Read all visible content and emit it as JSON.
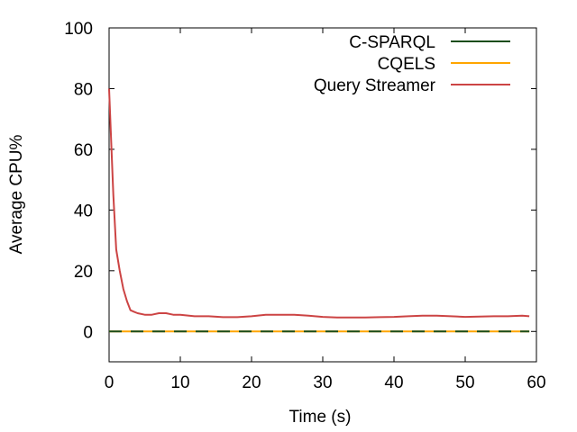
{
  "chart_data": {
    "type": "line",
    "title": "",
    "xlabel": "Time (s)",
    "ylabel": "Average CPU%",
    "xlim": [
      0,
      60
    ],
    "ylim": [
      -10,
      100
    ],
    "xticks": [
      0,
      10,
      20,
      30,
      40,
      50,
      60
    ],
    "yticks": [
      0,
      20,
      40,
      60,
      80,
      100
    ],
    "grid": false,
    "legend_position": "top-right",
    "series": [
      {
        "name": "C-SPARQL",
        "color": "#1a4d1a",
        "x": [
          0,
          3,
          4,
          59
        ],
        "y": [
          0,
          0,
          0,
          0
        ]
      },
      {
        "name": "CQELS",
        "color": "#ffa500",
        "x": [
          0,
          59
        ],
        "y": [
          0,
          0
        ]
      },
      {
        "name": "Query Streamer",
        "color": "#cc4444",
        "x": [
          0,
          0.3,
          0.6,
          1,
          1.5,
          2,
          2.5,
          3,
          3.5,
          4,
          5,
          6,
          7,
          8,
          9,
          10,
          12,
          14,
          16,
          18,
          20,
          22,
          24,
          26,
          28,
          30,
          32,
          34,
          36,
          38,
          40,
          42,
          44,
          46,
          48,
          50,
          52,
          54,
          56,
          58,
          59
        ],
        "y": [
          80,
          62,
          45,
          27,
          20,
          14,
          10,
          7,
          6.5,
          6,
          5.5,
          5.5,
          6,
          6,
          5.5,
          5.5,
          5,
          5,
          4.7,
          4.7,
          5,
          5.5,
          5.5,
          5.5,
          5.2,
          4.8,
          4.6,
          4.6,
          4.6,
          4.7,
          4.8,
          5,
          5.2,
          5.2,
          5,
          4.8,
          4.9,
          5,
          5,
          5.2,
          5
        ]
      }
    ]
  }
}
